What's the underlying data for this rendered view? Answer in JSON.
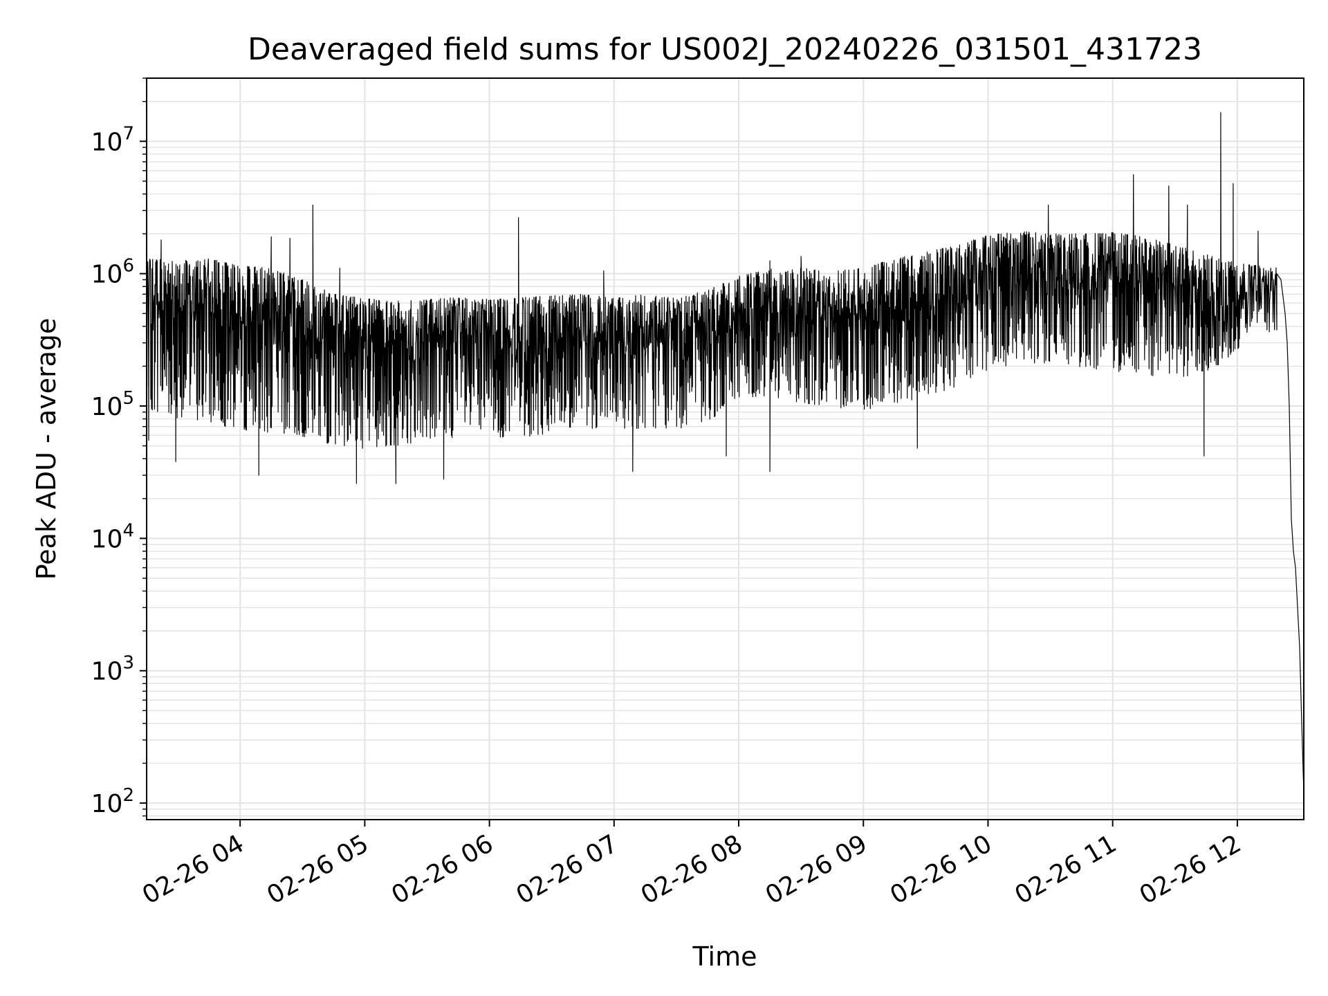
{
  "chart_data": {
    "type": "line",
    "title": "Deaveraged field sums for US002J_20240226_031501_431723",
    "xlabel": "Time",
    "ylabel": "Peak ADU - average",
    "yscale": "log",
    "ylim": [
      75,
      30000000
    ],
    "xlim": [
      "02-26 03:15",
      "02-26 12:32"
    ],
    "grid": true,
    "line_color": "#000000",
    "grid_color": "#e3e3e3",
    "x_ticks": [
      {
        "label": "02-26 04",
        "time": "02-26 04:00"
      },
      {
        "label": "02-26 05",
        "time": "02-26 05:00"
      },
      {
        "label": "02-26 06",
        "time": "02-26 06:00"
      },
      {
        "label": "02-26 07",
        "time": "02-26 07:00"
      },
      {
        "label": "02-26 08",
        "time": "02-26 08:00"
      },
      {
        "label": "02-26 09",
        "time": "02-26 09:00"
      },
      {
        "label": "02-26 10",
        "time": "02-26 10:00"
      },
      {
        "label": "02-26 11",
        "time": "02-26 11:00"
      },
      {
        "label": "02-26 12",
        "time": "02-26 12:00"
      }
    ],
    "y_ticks": [
      {
        "value": 100,
        "base": "10",
        "exp": "2"
      },
      {
        "value": 1000,
        "base": "10",
        "exp": "3"
      },
      {
        "value": 10000,
        "base": "10",
        "exp": "4"
      },
      {
        "value": 100000,
        "base": "10",
        "exp": "5"
      },
      {
        "value": 1000000,
        "base": "10",
        "exp": "6"
      },
      {
        "value": 10000000,
        "base": "10",
        "exp": "7"
      }
    ],
    "series": [
      {
        "points": [
          {
            "t": "02-26 03:15",
            "upper": 1300000,
            "lower": 60000
          },
          {
            "t": "02-26 03:30",
            "upper": 1250000,
            "lower": 50000
          },
          {
            "t": "02-26 03:45",
            "upper": 1300000,
            "lower": 45000
          },
          {
            "t": "02-26 04:00",
            "upper": 1150000,
            "lower": 40000
          },
          {
            "t": "02-26 04:15",
            "upper": 1100000,
            "lower": 38000
          },
          {
            "t": "02-26 04:30",
            "upper": 900000,
            "lower": 36000
          },
          {
            "t": "02-26 04:45",
            "upper": 700000,
            "lower": 32000
          },
          {
            "t": "02-26 05:00",
            "upper": 650000,
            "lower": 30000
          },
          {
            "t": "02-26 05:15",
            "upper": 620000,
            "lower": 32000
          },
          {
            "t": "02-26 05:30",
            "upper": 640000,
            "lower": 36000
          },
          {
            "t": "02-26 05:45",
            "upper": 660000,
            "lower": 38000
          },
          {
            "t": "02-26 06:00",
            "upper": 640000,
            "lower": 38000
          },
          {
            "t": "02-26 06:15",
            "upper": 660000,
            "lower": 38000
          },
          {
            "t": "02-26 06:30",
            "upper": 680000,
            "lower": 40000
          },
          {
            "t": "02-26 06:45",
            "upper": 700000,
            "lower": 45000
          },
          {
            "t": "02-26 07:00",
            "upper": 650000,
            "lower": 45000
          },
          {
            "t": "02-26 07:15",
            "upper": 700000,
            "lower": 45000
          },
          {
            "t": "02-26 07:30",
            "upper": 650000,
            "lower": 45000
          },
          {
            "t": "02-26 07:45",
            "upper": 750000,
            "lower": 50000
          },
          {
            "t": "02-26 08:00",
            "upper": 950000,
            "lower": 80000
          },
          {
            "t": "02-26 08:15",
            "upper": 1100000,
            "lower": 80000
          },
          {
            "t": "02-26 08:30",
            "upper": 1100000,
            "lower": 70000
          },
          {
            "t": "02-26 08:45",
            "upper": 1050000,
            "lower": 65000
          },
          {
            "t": "02-26 09:00",
            "upper": 1100000,
            "lower": 60000
          },
          {
            "t": "02-26 09:15",
            "upper": 1300000,
            "lower": 65000
          },
          {
            "t": "02-26 09:30",
            "upper": 1450000,
            "lower": 75000
          },
          {
            "t": "02-26 09:45",
            "upper": 1650000,
            "lower": 90000
          },
          {
            "t": "02-26 10:00",
            "upper": 1950000,
            "lower": 120000
          },
          {
            "t": "02-26 10:15",
            "upper": 2100000,
            "lower": 140000
          },
          {
            "t": "02-26 10:30",
            "upper": 2000000,
            "lower": 140000
          },
          {
            "t": "02-26 10:45",
            "upper": 2000000,
            "lower": 130000
          },
          {
            "t": "02-26 11:00",
            "upper": 2050000,
            "lower": 120000
          },
          {
            "t": "02-26 11:15",
            "upper": 1900000,
            "lower": 110000
          },
          {
            "t": "02-26 11:30",
            "upper": 1650000,
            "lower": 110000
          },
          {
            "t": "02-26 11:45",
            "upper": 1400000,
            "lower": 120000
          },
          {
            "t": "02-26 12:00",
            "upper": 1200000,
            "lower": 200000
          },
          {
            "t": "02-26 12:10",
            "upper": 1150000,
            "lower": 450000
          },
          {
            "t": "02-26 12:20",
            "upper": 1100000,
            "lower": 650000
          }
        ],
        "spikes": [
          {
            "t": "02-26 03:22",
            "value": 1800000
          },
          {
            "t": "02-26 04:15",
            "value": 1900000
          },
          {
            "t": "02-26 04:24",
            "value": 1850000
          },
          {
            "t": "02-26 04:35",
            "value": 3300000
          },
          {
            "t": "02-26 04:48",
            "value": 1100000
          },
          {
            "t": "02-26 06:14",
            "value": 2650000
          },
          {
            "t": "02-26 06:55",
            "value": 1050000
          },
          {
            "t": "02-26 08:15",
            "value": 1250000
          },
          {
            "t": "02-26 08:30",
            "value": 1350000
          },
          {
            "t": "02-26 10:29",
            "value": 3300000
          },
          {
            "t": "02-26 11:10",
            "value": 5600000
          },
          {
            "t": "02-26 11:27",
            "value": 4600000
          },
          {
            "t": "02-26 11:36",
            "value": 3300000
          },
          {
            "t": "02-26 11:52",
            "value": 16500000
          },
          {
            "t": "02-26 11:58",
            "value": 4800000
          },
          {
            "t": "02-26 12:10",
            "value": 2100000
          }
        ],
        "dips": [
          {
            "t": "02-26 03:16",
            "value": 55000
          },
          {
            "t": "02-26 03:29",
            "value": 38000
          },
          {
            "t": "02-26 04:09",
            "value": 30000
          },
          {
            "t": "02-26 04:56",
            "value": 26000
          },
          {
            "t": "02-26 05:15",
            "value": 26000
          },
          {
            "t": "02-26 05:38",
            "value": 28000
          },
          {
            "t": "02-26 07:09",
            "value": 32000
          },
          {
            "t": "02-26 07:54",
            "value": 42000
          },
          {
            "t": "02-26 08:15",
            "value": 32000
          },
          {
            "t": "02-26 09:26",
            "value": 48000
          },
          {
            "t": "02-26 11:44",
            "value": 42000
          }
        ],
        "tail": [
          {
            "t": "02-26 12:19",
            "value": 1000000
          },
          {
            "t": "02-26 12:21",
            "value": 900000
          },
          {
            "t": "02-26 12:23",
            "value": 500000
          },
          {
            "t": "02-26 12:24",
            "value": 300000
          },
          {
            "t": "02-26 12:25",
            "value": 100000
          },
          {
            "t": "02-26 12:26",
            "value": 14000
          },
          {
            "t": "02-26 12:27",
            "value": 8000
          },
          {
            "t": "02-26 12:28",
            "value": 6000
          },
          {
            "t": "02-26 12:29",
            "value": 3000
          },
          {
            "t": "02-26 12:30",
            "value": 1500
          },
          {
            "t": "02-26 12:31",
            "value": 400
          },
          {
            "t": "02-26 12:32",
            "value": 120
          }
        ]
      }
    ]
  }
}
